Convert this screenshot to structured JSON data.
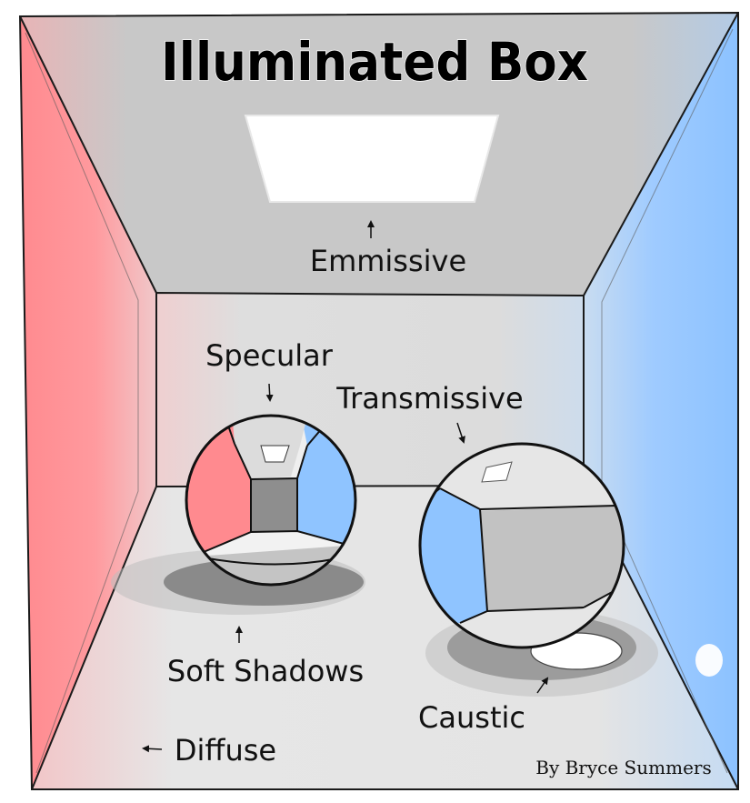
{
  "title": "Illuminated Box",
  "labels": {
    "emissive": "Emmissive",
    "specular": "Specular",
    "transmissive": "Transmissive",
    "soft_shadows": "Soft Shadows",
    "caustic": "Caustic",
    "diffuse": "Diffuse"
  },
  "credit": "By Bryce Summers",
  "colors": {
    "left_wall": "#ff8a8f",
    "right_wall": "#8fc4ff",
    "ceiling": "#c8c8c8",
    "back_wall": "#dcdcdc",
    "floor": "#e4e4e4",
    "outline": "#1a1a1a",
    "light": "#ffffff"
  }
}
